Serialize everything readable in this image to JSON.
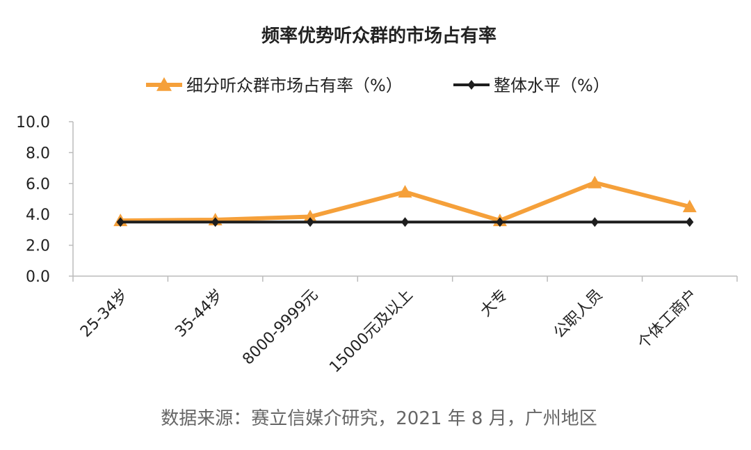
{
  "chart_data": {
    "type": "line",
    "title": "频率优势听众群的市场占有率",
    "categories": [
      "25-34岁",
      "35-44岁",
      "8000-9999元",
      "15000元及以上",
      "大专",
      "公职人员",
      "个体工商户"
    ],
    "series": [
      {
        "name": "细分听众群市场占有率（%）",
        "values": [
          3.6,
          3.65,
          3.85,
          5.45,
          3.6,
          6.05,
          4.5
        ],
        "color": "#F5A03A",
        "marker": "triangle"
      },
      {
        "name": "整体水平（%）",
        "values": [
          3.5,
          3.5,
          3.5,
          3.5,
          3.5,
          3.5,
          3.5
        ],
        "color": "#1E1E1E",
        "marker": "diamond"
      }
    ],
    "ylim": [
      0,
      10
    ],
    "yticks": [
      "0.0",
      "2.0",
      "4.0",
      "6.0",
      "8.0",
      "10.0"
    ],
    "grid": false,
    "legend": "top",
    "source": "数据来源：赛立信媒介研究，2021 年 8 月，广州地区"
  }
}
